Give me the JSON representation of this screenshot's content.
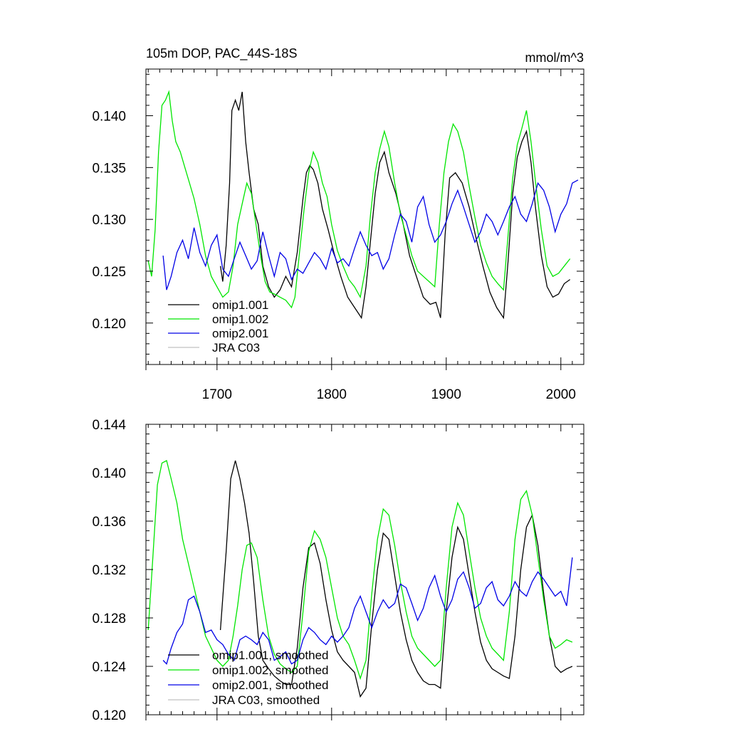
{
  "colors": {
    "omip1_001": "#000000",
    "omip1_002": "#00e600",
    "omip2_001": "#0000e6",
    "jra_c03": "#c0c0c0"
  },
  "chart_data": [
    {
      "type": "line",
      "title": "105m DOP, PAC_44S-18S",
      "units": "mmol/m^3",
      "xlabel": "",
      "ylabel": "",
      "xlim": [
        1638,
        2020
      ],
      "ylim": [
        0.116,
        0.1445
      ],
      "xticks": [
        1700,
        1800,
        1900,
        2000
      ],
      "xtick_labels": [
        "1700",
        "1800",
        "1900",
        "2000"
      ],
      "yticks": [
        0.12,
        0.125,
        0.13,
        0.135,
        0.14
      ],
      "ytick_labels": [
        "0.120",
        "0.125",
        "0.130",
        "0.135",
        "0.140"
      ],
      "legend_position": "bottom-left",
      "series": [
        {
          "name": "omip1.001",
          "color_key": "omip1_001",
          "x": [
            1703,
            1705,
            1708,
            1711,
            1713,
            1716,
            1719,
            1722,
            1725,
            1728,
            1732,
            1736,
            1740,
            1745,
            1750,
            1755,
            1760,
            1765,
            1770,
            1775,
            1778,
            1781,
            1784,
            1788,
            1792,
            1797,
            1802,
            1808,
            1814,
            1820,
            1826,
            1830,
            1834,
            1838,
            1842,
            1846,
            1850,
            1856,
            1862,
            1868,
            1874,
            1880,
            1886,
            1891,
            1895,
            1899,
            1903,
            1908,
            1914,
            1920,
            1926,
            1932,
            1938,
            1944,
            1950,
            1954,
            1958,
            1962,
            1966,
            1970,
            1974,
            1978,
            1983,
            1988,
            1993,
            1998,
            2003,
            2008
          ],
          "values": [
            0.1255,
            0.124,
            0.1275,
            0.1335,
            0.1405,
            0.1415,
            0.1405,
            0.1423,
            0.1375,
            0.1345,
            0.131,
            0.1295,
            0.1255,
            0.1235,
            0.1225,
            0.1232,
            0.1245,
            0.1235,
            0.1268,
            0.132,
            0.1345,
            0.1352,
            0.1348,
            0.1335,
            0.131,
            0.129,
            0.1268,
            0.1245,
            0.1225,
            0.1215,
            0.1205,
            0.1235,
            0.128,
            0.1325,
            0.1355,
            0.1365,
            0.1345,
            0.1325,
            0.1298,
            0.1265,
            0.1245,
            0.1225,
            0.1218,
            0.122,
            0.1205,
            0.1285,
            0.134,
            0.1345,
            0.1335,
            0.1312,
            0.1282,
            0.1255,
            0.123,
            0.1215,
            0.1205,
            0.126,
            0.1325,
            0.136,
            0.1375,
            0.1385,
            0.1355,
            0.131,
            0.1265,
            0.1235,
            0.1225,
            0.1228,
            0.1238,
            0.1242
          ]
        },
        {
          "name": "omip1.002",
          "color_key": "omip1_002",
          "x": [
            1640,
            1643,
            1646,
            1649,
            1652,
            1655,
            1658,
            1661,
            1664,
            1668,
            1672,
            1676,
            1680,
            1685,
            1690,
            1695,
            1700,
            1705,
            1710,
            1714,
            1718,
            1722,
            1726,
            1730,
            1734,
            1738,
            1742,
            1746,
            1750,
            1755,
            1760,
            1765,
            1768,
            1772,
            1776,
            1780,
            1784,
            1788,
            1792,
            1796,
            1800,
            1805,
            1810,
            1815,
            1820,
            1825,
            1830,
            1834,
            1838,
            1842,
            1846,
            1850,
            1855,
            1860,
            1865,
            1870,
            1875,
            1880,
            1885,
            1890,
            1894,
            1898,
            1902,
            1906,
            1910,
            1915,
            1920,
            1925,
            1930,
            1935,
            1940,
            1945,
            1950,
            1954,
            1958,
            1962,
            1966,
            1970,
            1974,
            1978,
            1983,
            1988,
            1993,
            1998,
            2003,
            2008
          ],
          "values": [
            0.126,
            0.1245,
            0.129,
            0.1365,
            0.141,
            0.1415,
            0.1423,
            0.1395,
            0.1375,
            0.1365,
            0.135,
            0.1335,
            0.132,
            0.1295,
            0.1265,
            0.1245,
            0.1235,
            0.1225,
            0.123,
            0.1255,
            0.1295,
            0.1315,
            0.1335,
            0.1325,
            0.1295,
            0.1265,
            0.124,
            0.123,
            0.1228,
            0.1225,
            0.1222,
            0.1215,
            0.1225,
            0.1268,
            0.131,
            0.1345,
            0.1365,
            0.1355,
            0.1335,
            0.1322,
            0.1295,
            0.127,
            0.1255,
            0.1242,
            0.1235,
            0.1225,
            0.1255,
            0.1305,
            0.1345,
            0.1368,
            0.1385,
            0.137,
            0.1335,
            0.1305,
            0.1285,
            0.1265,
            0.125,
            0.1245,
            0.124,
            0.1235,
            0.1295,
            0.1345,
            0.1375,
            0.1392,
            0.1385,
            0.1365,
            0.1332,
            0.1302,
            0.1275,
            0.1258,
            0.1245,
            0.1238,
            0.1232,
            0.1285,
            0.134,
            0.1372,
            0.1388,
            0.1405,
            0.1375,
            0.1335,
            0.129,
            0.1255,
            0.1245,
            0.1248,
            0.1255,
            0.1262
          ]
        },
        {
          "name": "omip2.001",
          "color_key": "omip2_001",
          "x": [
            1653,
            1656,
            1660,
            1665,
            1670,
            1675,
            1680,
            1685,
            1690,
            1695,
            1700,
            1705,
            1710,
            1715,
            1720,
            1725,
            1730,
            1735,
            1740,
            1745,
            1750,
            1755,
            1760,
            1765,
            1770,
            1775,
            1780,
            1785,
            1790,
            1795,
            1800,
            1805,
            1810,
            1815,
            1820,
            1825,
            1830,
            1835,
            1840,
            1845,
            1850,
            1855,
            1860,
            1865,
            1870,
            1875,
            1880,
            1885,
            1890,
            1895,
            1900,
            1905,
            1910,
            1915,
            1920,
            1925,
            1930,
            1935,
            1940,
            1945,
            1950,
            1955,
            1960,
            1965,
            1970,
            1975,
            1980,
            1985,
            1990,
            1995,
            2000,
            2005,
            2010,
            2015
          ],
          "values": [
            0.1265,
            0.1232,
            0.1245,
            0.1268,
            0.128,
            0.1262,
            0.1292,
            0.1268,
            0.1255,
            0.1275,
            0.1285,
            0.1252,
            0.1245,
            0.1262,
            0.1278,
            0.1265,
            0.1252,
            0.126,
            0.1288,
            0.1265,
            0.1245,
            0.1268,
            0.1262,
            0.1242,
            0.1252,
            0.1248,
            0.1258,
            0.1268,
            0.1262,
            0.1252,
            0.1272,
            0.1258,
            0.1262,
            0.1255,
            0.1272,
            0.1288,
            0.1275,
            0.1265,
            0.1268,
            0.1252,
            0.1262,
            0.1285,
            0.1305,
            0.1298,
            0.1278,
            0.1312,
            0.1322,
            0.1295,
            0.1278,
            0.1285,
            0.1298,
            0.1315,
            0.1328,
            0.1312,
            0.1295,
            0.1278,
            0.1288,
            0.1305,
            0.1298,
            0.1285,
            0.1298,
            0.1312,
            0.1322,
            0.1305,
            0.1298,
            0.1315,
            0.1335,
            0.1328,
            0.1312,
            0.1288,
            0.1305,
            0.1315,
            0.1335,
            0.1338
          ]
        },
        {
          "name": "JRA C03",
          "color_key": "jra_c03",
          "x": [],
          "values": []
        }
      ]
    },
    {
      "type": "line",
      "title": "",
      "xlabel": "",
      "ylabel": "",
      "xlim": [
        1638,
        2020
      ],
      "ylim": [
        0.12,
        0.144
      ],
      "xticks": [
        1700,
        1800,
        1900,
        2000
      ],
      "xtick_labels": [],
      "yticks": [
        0.12,
        0.124,
        0.128,
        0.132,
        0.136,
        0.14,
        0.144
      ],
      "ytick_labels": [
        "0.120",
        "0.124",
        "0.128",
        "0.132",
        "0.136",
        "0.140",
        "0.144"
      ],
      "legend_position": "bottom-left",
      "series": [
        {
          "name": "omip1.001, smoothed",
          "color_key": "omip1_001",
          "x": [
            1703,
            1708,
            1712,
            1716,
            1720,
            1724,
            1728,
            1732,
            1736,
            1740,
            1745,
            1750,
            1755,
            1760,
            1765,
            1770,
            1775,
            1780,
            1785,
            1790,
            1795,
            1800,
            1805,
            1810,
            1815,
            1820,
            1825,
            1830,
            1835,
            1840,
            1845,
            1850,
            1855,
            1860,
            1865,
            1870,
            1875,
            1880,
            1885,
            1890,
            1895,
            1900,
            1905,
            1910,
            1915,
            1920,
            1925,
            1930,
            1935,
            1940,
            1945,
            1950,
            1955,
            1960,
            1965,
            1970,
            1975,
            1980,
            1985,
            1990,
            1995,
            2000,
            2005,
            2010
          ],
          "values": [
            0.127,
            0.1335,
            0.1395,
            0.141,
            0.1395,
            0.1375,
            0.135,
            0.131,
            0.1265,
            0.1245,
            0.1238,
            0.1232,
            0.1228,
            0.1225,
            0.1225,
            0.1255,
            0.1305,
            0.1338,
            0.1342,
            0.1325,
            0.1295,
            0.127,
            0.1252,
            0.1245,
            0.124,
            0.1235,
            0.1215,
            0.1222,
            0.1275,
            0.132,
            0.135,
            0.1345,
            0.1315,
            0.1285,
            0.1262,
            0.1245,
            0.1235,
            0.1228,
            0.1225,
            0.1225,
            0.1222,
            0.1285,
            0.133,
            0.1355,
            0.1345,
            0.1315,
            0.1285,
            0.126,
            0.1245,
            0.1238,
            0.1235,
            0.1232,
            0.123,
            0.1265,
            0.132,
            0.1355,
            0.1365,
            0.134,
            0.13,
            0.1265,
            0.124,
            0.1235,
            0.1238,
            0.124
          ]
        },
        {
          "name": "omip1.002, smoothed",
          "color_key": "omip1_002",
          "x": [
            1640,
            1644,
            1648,
            1652,
            1656,
            1660,
            1665,
            1670,
            1675,
            1680,
            1685,
            1690,
            1695,
            1700,
            1705,
            1710,
            1714,
            1718,
            1722,
            1726,
            1730,
            1735,
            1740,
            1745,
            1750,
            1755,
            1760,
            1765,
            1770,
            1775,
            1780,
            1785,
            1790,
            1795,
            1800,
            1805,
            1810,
            1815,
            1820,
            1825,
            1830,
            1835,
            1840,
            1845,
            1850,
            1855,
            1860,
            1865,
            1870,
            1875,
            1880,
            1885,
            1890,
            1895,
            1900,
            1905,
            1910,
            1915,
            1920,
            1925,
            1930,
            1935,
            1940,
            1945,
            1950,
            1955,
            1960,
            1965,
            1970,
            1975,
            1980,
            1985,
            1990,
            1995,
            2000,
            2005,
            2010
          ],
          "values": [
            0.127,
            0.133,
            0.139,
            0.1408,
            0.141,
            0.1395,
            0.1375,
            0.1345,
            0.1325,
            0.1305,
            0.1285,
            0.1265,
            0.1255,
            0.1245,
            0.124,
            0.1245,
            0.1265,
            0.129,
            0.132,
            0.134,
            0.1342,
            0.133,
            0.1295,
            0.1265,
            0.125,
            0.1242,
            0.1238,
            0.1235,
            0.124,
            0.1285,
            0.1335,
            0.1352,
            0.1345,
            0.133,
            0.1305,
            0.128,
            0.1265,
            0.1258,
            0.1245,
            0.123,
            0.1245,
            0.13,
            0.1345,
            0.137,
            0.1365,
            0.134,
            0.131,
            0.1285,
            0.1265,
            0.1255,
            0.125,
            0.1245,
            0.124,
            0.1245,
            0.1305,
            0.1355,
            0.1375,
            0.1365,
            0.1335,
            0.1305,
            0.128,
            0.1265,
            0.1255,
            0.125,
            0.1245,
            0.1285,
            0.1345,
            0.1378,
            0.1385,
            0.1365,
            0.133,
            0.1295,
            0.1265,
            0.1255,
            0.1258,
            0.1262,
            0.126
          ]
        },
        {
          "name": "omip2.001, smoothed",
          "color_key": "omip2_001",
          "x": [
            1653,
            1656,
            1660,
            1665,
            1670,
            1675,
            1680,
            1685,
            1690,
            1695,
            1700,
            1705,
            1710,
            1715,
            1720,
            1725,
            1730,
            1735,
            1740,
            1745,
            1750,
            1755,
            1760,
            1765,
            1770,
            1775,
            1780,
            1785,
            1790,
            1795,
            1800,
            1805,
            1810,
            1815,
            1820,
            1825,
            1830,
            1835,
            1840,
            1845,
            1850,
            1855,
            1860,
            1865,
            1870,
            1875,
            1880,
            1885,
            1890,
            1895,
            1900,
            1905,
            1910,
            1915,
            1920,
            1925,
            1930,
            1935,
            1940,
            1945,
            1950,
            1955,
            1960,
            1965,
            1970,
            1975,
            1980,
            1985,
            1990,
            1995,
            2000,
            2005,
            2010
          ],
          "values": [
            0.1245,
            0.1242,
            0.1255,
            0.1268,
            0.1275,
            0.1295,
            0.1298,
            0.1285,
            0.1268,
            0.127,
            0.1262,
            0.1258,
            0.125,
            0.1245,
            0.1262,
            0.1265,
            0.1262,
            0.1258,
            0.1268,
            0.1262,
            0.1245,
            0.1248,
            0.1252,
            0.1242,
            0.1245,
            0.1262,
            0.1272,
            0.1268,
            0.1262,
            0.1258,
            0.1265,
            0.126,
            0.1265,
            0.1272,
            0.1288,
            0.1298,
            0.1285,
            0.1272,
            0.1285,
            0.1295,
            0.1288,
            0.1292,
            0.1308,
            0.1305,
            0.1292,
            0.1278,
            0.1288,
            0.1305,
            0.1315,
            0.1298,
            0.1285,
            0.1295,
            0.1312,
            0.1318,
            0.1305,
            0.1288,
            0.1292,
            0.1305,
            0.131,
            0.1295,
            0.129,
            0.1298,
            0.131,
            0.1302,
            0.1298,
            0.131,
            0.1318,
            0.1312,
            0.1305,
            0.1298,
            0.1302,
            0.129,
            0.133
          ]
        },
        {
          "name": "JRA C03, smoothed",
          "color_key": "jra_c03",
          "x": [],
          "values": []
        }
      ]
    }
  ]
}
